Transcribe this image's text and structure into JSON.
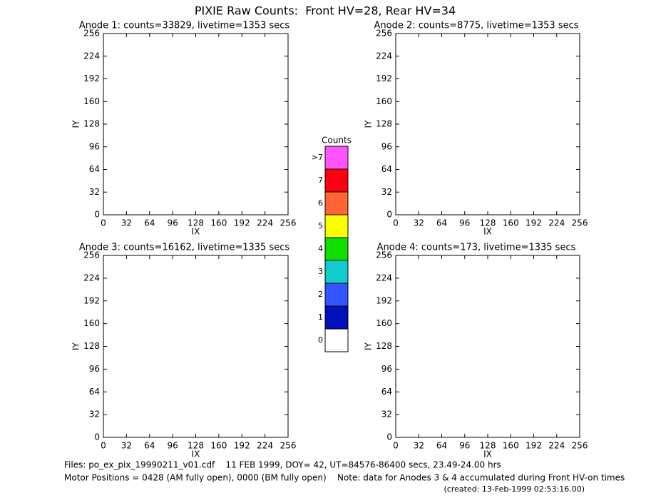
{
  "title": "PIXIE Raw Counts:  Front HV=28, Rear HV=34",
  "chart_data": [
    {
      "type": "heatmap",
      "title": "Anode 1: counts=33829, livetime=1353 secs",
      "xlabel": "IX",
      "ylabel": "IY",
      "xlim": [
        0,
        256
      ],
      "ylim": [
        0,
        256
      ],
      "xticks": [
        0,
        32,
        64,
        96,
        128,
        160,
        192,
        224,
        256
      ],
      "yticks": [
        0,
        32,
        64,
        96,
        128,
        160,
        192,
        224,
        256
      ]
    },
    {
      "type": "heatmap",
      "title": "Anode 2: counts=8775, livetime=1353 secs",
      "xlabel": "IX",
      "ylabel": "IY",
      "xlim": [
        0,
        256
      ],
      "ylim": [
        0,
        256
      ],
      "xticks": [
        0,
        32,
        64,
        96,
        128,
        160,
        192,
        224,
        256
      ],
      "yticks": [
        0,
        32,
        64,
        96,
        128,
        160,
        192,
        224,
        256
      ]
    },
    {
      "type": "heatmap",
      "title": "Anode 3: counts=16162, livetime=1335 secs",
      "xlabel": "IX",
      "ylabel": "IY",
      "xlim": [
        0,
        256
      ],
      "ylim": [
        0,
        256
      ],
      "xticks": [
        0,
        32,
        64,
        96,
        128,
        160,
        192,
        224,
        256
      ],
      "yticks": [
        0,
        32,
        64,
        96,
        128,
        160,
        192,
        224,
        256
      ]
    },
    {
      "type": "heatmap",
      "title": "Anode 4: counts=173, livetime=1335 secs",
      "xlabel": "IX",
      "ylabel": "IY",
      "xlim": [
        0,
        256
      ],
      "ylim": [
        0,
        256
      ],
      "xticks": [
        0,
        32,
        64,
        96,
        128,
        160,
        192,
        224,
        256
      ],
      "yticks": [
        0,
        32,
        64,
        96,
        128,
        160,
        192,
        224,
        256
      ]
    }
  ],
  "colorbar": {
    "title": "Counts",
    "levels": [
      {
        "label": "0",
        "color": "#ffffff"
      },
      {
        "label": "1",
        "color": "#0011bb"
      },
      {
        "label": "2",
        "color": "#3355ff"
      },
      {
        "label": "3",
        "color": "#11cccc"
      },
      {
        "label": "4",
        "color": "#11dd00"
      },
      {
        "label": "5",
        "color": "#ffff00"
      },
      {
        "label": "6",
        "color": "#ff6633"
      },
      {
        "label": "7",
        "color": "#ff0011"
      },
      {
        "label": ">7",
        "color": "#ff55ff"
      }
    ]
  },
  "footer": {
    "files": "Files: po_ex_pix_19990211_v01.cdf    11 FEB 1999, DOY= 42, UT=84576-86400 secs, 23.49-24.00 hrs",
    "motor": "Motor Positions = 0428 (AM fully open), 0000 (BM fully open)    Note: data for Anodes 3 & 4 accumulated during Front HV-on times",
    "created": "(created: 13-Feb-1999 02:53:16.00)"
  }
}
